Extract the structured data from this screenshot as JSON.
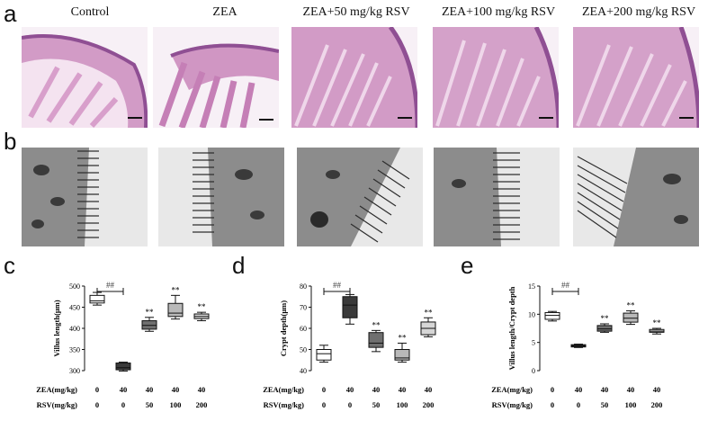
{
  "figure": {
    "panel_labels": {
      "a": "a",
      "b": "b",
      "c": "c",
      "d": "d",
      "e": "e"
    },
    "groups": [
      "Control",
      "ZEA",
      "ZEA+50 mg/kg RSV",
      "ZEA+100 mg/kg RSV",
      "ZEA+200 mg/kg RSV"
    ],
    "colors": {
      "he_tissue": "#c57fb6",
      "he_dark": "#8f4f93",
      "he_bg": "#f7f0f6",
      "em_bg": "#e8e8e8",
      "em_dark": "#3a3a3a"
    }
  },
  "chart_data": [
    {
      "type": "box",
      "panel": "c",
      "ylabel": "Villus length(μm)",
      "ylim": [
        300,
        500
      ],
      "yticks": [
        "300",
        "350",
        "400",
        "450",
        "500"
      ],
      "row_labels": [
        "ZEA(mg/kg)",
        "RSV(mg/kg)"
      ],
      "zea": [
        "0",
        "40",
        "40",
        "40",
        "40"
      ],
      "rsv": [
        "0",
        "0",
        "50",
        "100",
        "200"
      ],
      "fills": [
        "#ffffff",
        "#3a3a3a",
        "#6f6f6f",
        "#b9b9b9",
        "#d6d6d6"
      ],
      "boxes": [
        {
          "min": 455,
          "q1": 460,
          "median": 465,
          "q3": 478,
          "max": 485
        },
        {
          "min": 299,
          "q1": 302,
          "median": 307,
          "q3": 318,
          "max": 320
        },
        {
          "min": 393,
          "q1": 398,
          "median": 407,
          "q3": 418,
          "max": 426
        },
        {
          "min": 422,
          "q1": 428,
          "median": 436,
          "q3": 459,
          "max": 478
        },
        {
          "min": 418,
          "q1": 423,
          "median": 428,
          "q3": 434,
          "max": 438
        }
      ],
      "annotations": [
        "",
        "##",
        "**",
        "**",
        "**"
      ]
    },
    {
      "type": "box",
      "panel": "d",
      "ylabel": "Crypt depth(μm)",
      "ylim": [
        40,
        80
      ],
      "yticks": [
        "40",
        "50",
        "60",
        "70",
        "80"
      ],
      "row_labels": [
        "ZEA(mg/kg)",
        "RSV(mg/kg)"
      ],
      "zea": [
        "0",
        "40",
        "40",
        "40",
        "40"
      ],
      "rsv": [
        "0",
        "0",
        "50",
        "100",
        "200"
      ],
      "fills": [
        "#ffffff",
        "#3a3a3a",
        "#6f6f6f",
        "#b9b9b9",
        "#d6d6d6"
      ],
      "boxes": [
        {
          "min": 44,
          "q1": 45,
          "median": 48,
          "q3": 50,
          "max": 52
        },
        {
          "min": 62,
          "q1": 65,
          "median": 71,
          "q3": 75,
          "max": 76
        },
        {
          "min": 49,
          "q1": 51,
          "median": 53,
          "q3": 58,
          "max": 59
        },
        {
          "min": 44,
          "q1": 45,
          "median": 46,
          "q3": 50,
          "max": 53
        },
        {
          "min": 56,
          "q1": 57,
          "median": 60,
          "q3": 63,
          "max": 65
        }
      ],
      "annotations": [
        "",
        "##",
        "**",
        "**",
        "**"
      ]
    },
    {
      "type": "box",
      "panel": "e",
      "ylabel": "Villus length/Crypt depth",
      "ylim": [
        0,
        15
      ],
      "yticks": [
        "0",
        "5",
        "10",
        "15"
      ],
      "row_labels": [
        "ZEA(mg/kg)",
        "RSV(mg/kg)"
      ],
      "zea": [
        "0",
        "40",
        "40",
        "40",
        "40"
      ],
      "rsv": [
        "0",
        "0",
        "50",
        "100",
        "200"
      ],
      "fills": [
        "#ffffff",
        "#3a3a3a",
        "#6f6f6f",
        "#b9b9b9",
        "#d6d6d6"
      ],
      "boxes": [
        {
          "min": 8.8,
          "q1": 9.1,
          "median": 9.8,
          "q3": 10.3,
          "max": 10.5
        },
        {
          "min": 4.1,
          "q1": 4.2,
          "median": 4.4,
          "q3": 4.6,
          "max": 4.7
        },
        {
          "min": 6.8,
          "q1": 7.0,
          "median": 7.4,
          "q3": 8.0,
          "max": 8.3
        },
        {
          "min": 8.2,
          "q1": 8.6,
          "median": 9.3,
          "q3": 10.2,
          "max": 10.6
        },
        {
          "min": 6.5,
          "q1": 6.8,
          "median": 7.0,
          "q3": 7.3,
          "max": 7.5
        }
      ],
      "annotations": [
        "",
        "##",
        "**",
        "**",
        "**"
      ]
    }
  ]
}
